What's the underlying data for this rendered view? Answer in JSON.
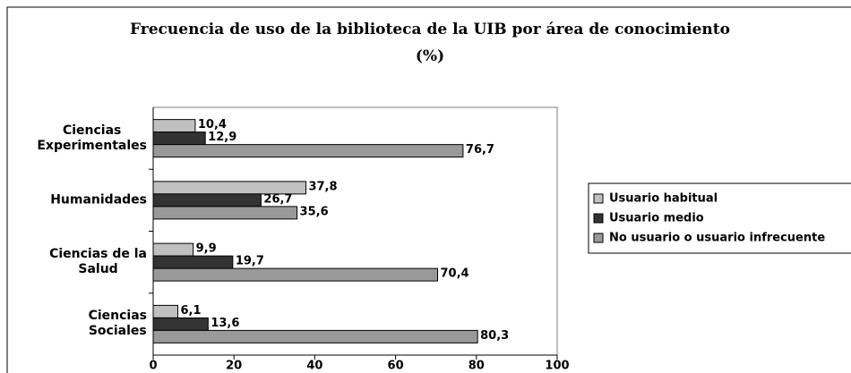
{
  "chart_data": {
    "type": "bar",
    "orientation": "horizontal",
    "title": "Frecuencia de uso de la biblioteca de la UIB por área de conocimiento\n(%)",
    "categories": [
      "Ciencias\nExperimentales",
      "Humanidades",
      "Ciencias de la\nSalud",
      "Ciencias\nSociales"
    ],
    "series": [
      {
        "name": "Usuario habitual",
        "color": "#c0c0c0",
        "values": [
          10.4,
          37.8,
          9.9,
          6.1
        ],
        "value_labels": [
          "10,4",
          "37,8",
          "9,9",
          "6,1"
        ]
      },
      {
        "name": "Usuario medio",
        "color": "#333333",
        "values": [
          12.9,
          26.7,
          19.7,
          13.6
        ],
        "value_labels": [
          "12,9",
          "26,7",
          "19,7",
          "13,6"
        ]
      },
      {
        "name": "No usuario o usuario infrecuente",
        "color": "#999999",
        "values": [
          76.7,
          35.6,
          70.4,
          80.3
        ],
        "value_labels": [
          "76,7",
          "35,6",
          "70,4",
          "80,3"
        ]
      }
    ],
    "xlim": [
      0,
      100
    ],
    "xticks": [
      0,
      20,
      40,
      60,
      80,
      100
    ],
    "grid": false,
    "legend": "right"
  }
}
